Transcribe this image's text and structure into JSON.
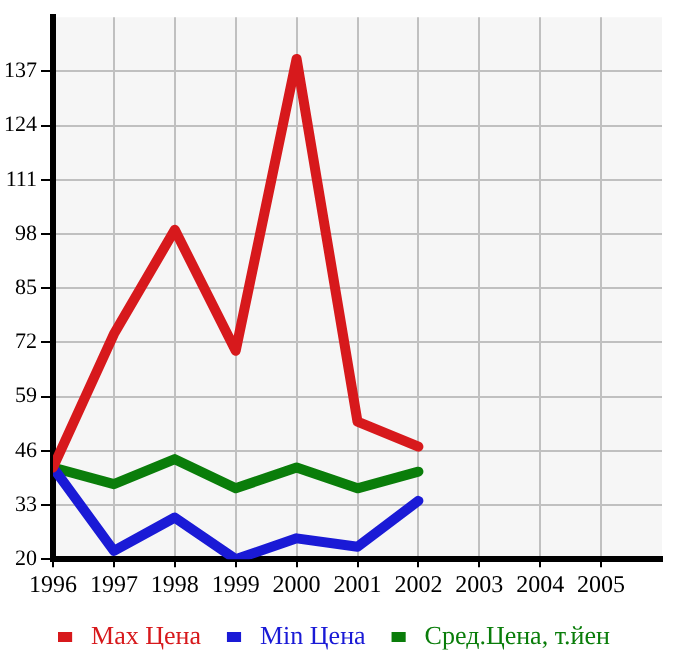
{
  "chart_data": {
    "type": "line",
    "x": [
      1996,
      1997,
      1998,
      1999,
      2000,
      2001,
      2002
    ],
    "series": [
      {
        "name": "Max Цена",
        "color": "#d7191c",
        "values": [
          42,
          74,
          99,
          70,
          140,
          53,
          47
        ]
      },
      {
        "name": "Min Цена",
        "color": "#1a1ad6",
        "values": [
          42,
          22,
          30,
          20,
          25,
          23,
          34
        ]
      },
      {
        "name": "Сред.Цена, т.йен",
        "color": "#0a7d0a",
        "values": [
          42,
          38,
          44,
          37,
          42,
          37,
          41
        ]
      }
    ],
    "xlim": [
      1996,
      2006
    ],
    "xticks": [
      1996,
      1997,
      1998,
      1999,
      2000,
      2001,
      2002,
      2003,
      2004,
      2005
    ],
    "ylim": [
      20,
      150
    ],
    "yticks": [
      20,
      33,
      46,
      59,
      72,
      85,
      98,
      111,
      124,
      137
    ],
    "grid": true,
    "legend": "bottom",
    "marker": "none",
    "line_style": "solid"
  }
}
